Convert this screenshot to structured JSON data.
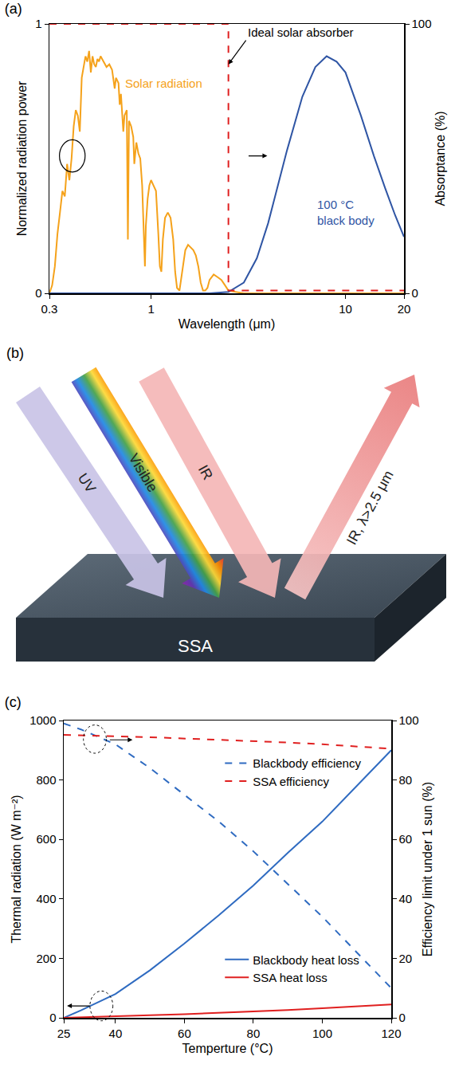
{
  "chart_data": [
    {
      "type": "line",
      "title": "(a)",
      "x_label": "Wavelength (μm)",
      "y_label": "Normalized radiation power",
      "y2_label": "Absorptance (%)",
      "log": "x",
      "grid": false,
      "xlim": [
        0.3,
        20
      ],
      "xticks": [
        0.3,
        1,
        10,
        20
      ],
      "ylim": [
        0,
        1
      ],
      "yticks": [
        0,
        1
      ],
      "y2lim": [
        0,
        100
      ],
      "y2ticks": [
        0,
        100
      ],
      "series": [
        {
          "name": "Solar radiation",
          "color": "#f5a21b",
          "x": [
            0.3,
            0.31,
            0.32,
            0.33,
            0.34,
            0.35,
            0.36,
            0.37,
            0.38,
            0.39,
            0.4,
            0.41,
            0.42,
            0.43,
            0.44,
            0.45,
            0.46,
            0.47,
            0.48,
            0.49,
            0.5,
            0.51,
            0.52,
            0.53,
            0.54,
            0.55,
            0.57,
            0.59,
            0.61,
            0.63,
            0.65,
            0.66,
            0.68,
            0.69,
            0.7,
            0.72,
            0.73,
            0.75,
            0.76,
            0.77,
            0.79,
            0.81,
            0.82,
            0.84,
            0.86,
            0.88,
            0.9,
            0.92,
            0.93,
            0.94,
            0.96,
            0.98,
            1.0,
            1.03,
            1.06,
            1.09,
            1.11,
            1.13,
            1.15,
            1.18,
            1.22,
            1.26,
            1.3,
            1.33,
            1.36,
            1.4,
            1.45,
            1.5,
            1.55,
            1.6,
            1.65,
            1.7,
            1.75,
            1.8,
            1.85,
            1.9,
            1.95,
            2.0,
            2.05,
            2.1,
            2.2,
            2.3,
            2.4,
            2.5,
            3.0,
            5.0,
            10.0,
            20.0
          ],
          "values": [
            0.0,
            0.03,
            0.1,
            0.22,
            0.3,
            0.38,
            0.36,
            0.48,
            0.42,
            0.5,
            0.62,
            0.68,
            0.66,
            0.6,
            0.8,
            0.84,
            0.88,
            0.86,
            0.9,
            0.82,
            0.88,
            0.85,
            0.84,
            0.87,
            0.86,
            0.88,
            0.86,
            0.84,
            0.85,
            0.83,
            0.76,
            0.8,
            0.78,
            0.7,
            0.74,
            0.6,
            0.66,
            0.68,
            0.2,
            0.64,
            0.62,
            0.58,
            0.48,
            0.56,
            0.52,
            0.5,
            0.4,
            0.2,
            0.1,
            0.25,
            0.35,
            0.4,
            0.42,
            0.4,
            0.38,
            0.22,
            0.1,
            0.08,
            0.2,
            0.28,
            0.3,
            0.28,
            0.2,
            0.08,
            0.02,
            0.01,
            0.08,
            0.16,
            0.18,
            0.17,
            0.16,
            0.14,
            0.1,
            0.04,
            0.01,
            0.01,
            0.02,
            0.05,
            0.06,
            0.07,
            0.06,
            0.05,
            0.03,
            0.01,
            0.0,
            0.0,
            0.0,
            0.0
          ]
        },
        {
          "name": "100 °C black body",
          "color": "#2f55a4",
          "x": [
            0.3,
            2.0,
            2.5,
            3,
            3.5,
            4,
            5,
            6,
            7,
            8,
            9,
            10,
            12,
            14,
            16,
            18,
            20
          ],
          "values": [
            0,
            0,
            0.005,
            0.04,
            0.13,
            0.26,
            0.53,
            0.73,
            0.84,
            0.88,
            0.86,
            0.82,
            0.66,
            0.51,
            0.39,
            0.29,
            0.21
          ]
        },
        {
          "name": "Ideal solar absorber",
          "color": "#e02020",
          "line_style": "dash",
          "axis": "y2",
          "x": [
            0.3,
            2.5,
            2.5,
            20
          ],
          "values": [
            100,
            100,
            1,
            1
          ]
        }
      ]
    },
    {
      "type": "line",
      "title": "(c)",
      "x_label": "Temperture (°C)",
      "y_label": "Thermal radiation (W m⁻²)",
      "y2_label": "Efficiency limit under 1 sun (%)",
      "grid": false,
      "legend": "right",
      "xlim": [
        25,
        120
      ],
      "xticks": [
        25,
        40,
        60,
        80,
        100,
        120
      ],
      "ylim": [
        0,
        1000
      ],
      "yticks": [
        0,
        200,
        400,
        600,
        800,
        1000
      ],
      "y2lim": [
        0,
        100
      ],
      "y2ticks": [
        0,
        20,
        40,
        60,
        80,
        100
      ],
      "x": [
        25,
        30,
        40,
        50,
        60,
        70,
        80,
        90,
        100,
        110,
        120
      ],
      "series": [
        {
          "name": "Blackbody efficiency",
          "color": "#2f6bc1",
          "line_style": "dash",
          "axis": "y2",
          "values": [
            99,
            97,
            92,
            84,
            75,
            66,
            56,
            45,
            34,
            22,
            10
          ]
        },
        {
          "name": "SSA efficiency",
          "color": "#e02020",
          "line_style": "dash",
          "axis": "y2",
          "values": [
            95.2,
            95,
            94.7,
            94.4,
            94,
            93.6,
            93.1,
            92.6,
            92,
            91.3,
            90.5
          ]
        },
        {
          "name": "Blackbody heat loss",
          "color": "#2f6bc1",
          "values": [
            0,
            25,
            80,
            160,
            250,
            345,
            445,
            555,
            660,
            780,
            900
          ]
        },
        {
          "name": "SSA heat loss",
          "color": "#e02020",
          "values": [
            0,
            2,
            6,
            9,
            12,
            16,
            21,
            26,
            32,
            38,
            45
          ]
        }
      ]
    }
  ],
  "diagram": {
    "label": "(b)",
    "surface": "SSA",
    "incoming": [
      "UV",
      "Visible",
      "IR"
    ],
    "outgoing": [
      "IR, λ>2.5 μm"
    ]
  }
}
